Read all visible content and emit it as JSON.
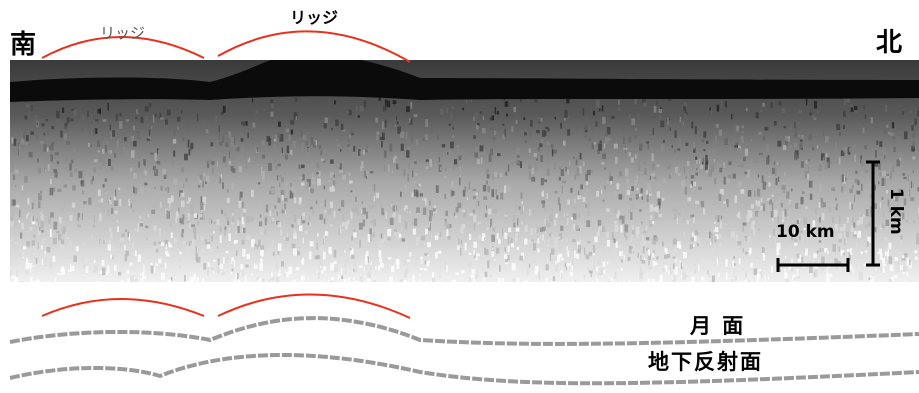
{
  "labels": {
    "south": "南",
    "north": "北",
    "ridge_left": "リッジ",
    "ridge_right": "リッジ",
    "scale_horizontal": "10 km",
    "scale_vertical": "1 km",
    "surface": "月 面",
    "subsurface": "地下反射面"
  },
  "colors": {
    "ridge_profile": "#e8301c",
    "surface_band": "#0b0b0b",
    "line_gray": "#9a9a9a",
    "background": "#ffffff"
  }
}
